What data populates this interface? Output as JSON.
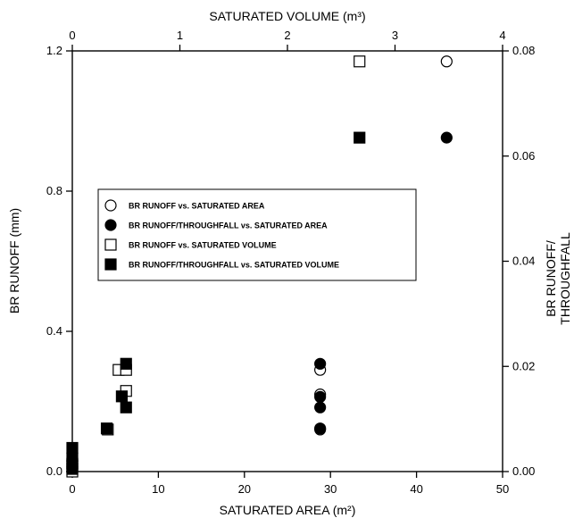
{
  "chart_data": {
    "type": "scatter",
    "title": "",
    "bottom_axis": {
      "label": "SATURATED AREA (m²)",
      "range": [
        0,
        50
      ],
      "ticks": [
        "0",
        "10",
        "20",
        "30",
        "40",
        "50"
      ]
    },
    "top_axis": {
      "label": "SATURATED VOLUME (m³)",
      "range": [
        0,
        4
      ],
      "ticks": [
        "0",
        "1",
        "2",
        "3",
        "4"
      ]
    },
    "left_axis": {
      "label": "BR RUNOFF (mm)",
      "range": [
        0,
        1.2
      ],
      "ticks": [
        "0.0",
        "0.4",
        "0.8",
        "1.2"
      ]
    },
    "right_axis": {
      "label_lines": [
        "BR RUNOFF/",
        "THROUGHFALL"
      ],
      "range": [
        0,
        0.08
      ],
      "ticks": [
        "0.00",
        "0.02",
        "0.04",
        "0.06",
        "0.08"
      ]
    },
    "legend_position": "center-left",
    "grid": false,
    "series": [
      {
        "name": "BR RUNOFF vs. SATURATED AREA",
        "marker": "circle-open",
        "x_axis": "bottom",
        "y_axis": "left",
        "points": [
          [
            0,
            0.0
          ],
          [
            0,
            0.01
          ],
          [
            0,
            0.02
          ],
          [
            0,
            0.03
          ],
          [
            28.8,
            0.12
          ],
          [
            28.8,
            0.22
          ],
          [
            28.8,
            0.29
          ],
          [
            43.5,
            1.17
          ]
        ]
      },
      {
        "name": "BR RUNOFF/THROUGHFALL vs. SATURATED AREA",
        "marker": "circle-filled",
        "x_axis": "bottom",
        "y_axis": "right",
        "points": [
          [
            0,
            0.001
          ],
          [
            0,
            0.002
          ],
          [
            28.8,
            0.0082
          ],
          [
            28.8,
            0.0122
          ],
          [
            28.8,
            0.0142
          ],
          [
            28.8,
            0.0205
          ],
          [
            43.5,
            0.0635
          ]
        ]
      },
      {
        "name": "BR RUNOFF vs. SATURATED VOLUME",
        "marker": "square-open",
        "x_axis": "top",
        "y_axis": "left",
        "points": [
          [
            0,
            0.0
          ],
          [
            0,
            0.02
          ],
          [
            0.33,
            0.12
          ],
          [
            0.43,
            0.29
          ],
          [
            0.5,
            0.23
          ],
          [
            0.5,
            0.29
          ],
          [
            2.67,
            1.17
          ]
        ]
      },
      {
        "name": "BR RUNOFF/THROUGHFALL vs. SATURATED VOLUME",
        "marker": "square-filled",
        "x_axis": "top",
        "y_axis": "right",
        "points": [
          [
            0,
            0.0005
          ],
          [
            0,
            0.0015
          ],
          [
            0,
            0.0025
          ],
          [
            0,
            0.0045
          ],
          [
            0.32,
            0.0082
          ],
          [
            0.46,
            0.0143
          ],
          [
            0.5,
            0.0122
          ],
          [
            0.5,
            0.0205
          ],
          [
            2.67,
            0.0635
          ]
        ]
      }
    ]
  }
}
